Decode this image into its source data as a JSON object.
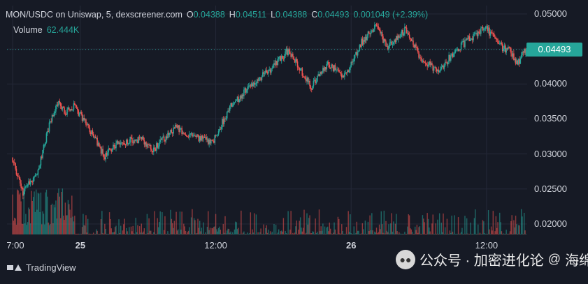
{
  "legend": {
    "symbol": "MON/USDC on Uniswap, 5, dexscreener.com",
    "open_label": "O",
    "open": "0.04388",
    "high_label": "H",
    "high": "0.04511",
    "low_label": "L",
    "low": "0.04388",
    "close_label": "C",
    "close": "0.04493",
    "change": "0.001049 (+2.39%)",
    "volume_label": "Volume",
    "volume": "62.444K"
  },
  "last_price": "0.04493",
  "footer": {
    "brand": "TradingView"
  },
  "watermark": {
    "text": "公众号 · 加密进化论",
    "handle": "海绵",
    "icon": "wechat-icon"
  },
  "colors": {
    "up": "#26a69a",
    "down": "#ef5350",
    "background": "#161a25",
    "grid": "#242838"
  },
  "chart_data": {
    "type": "candlestick",
    "y_ticks": [
      "0.05000",
      "0.04500",
      "0.04000",
      "0.03500",
      "0.03000",
      "0.02500",
      "0.02000"
    ],
    "y_tick_values": [
      0.05,
      0.045,
      0.04,
      0.035,
      0.03,
      0.025,
      0.02
    ],
    "x_ticks": [
      "7:00",
      "25",
      "12:00",
      "26",
      "12:00"
    ],
    "x_tick_hours": [
      0,
      6,
      18,
      30,
      42
    ],
    "x_range_hours": [
      -0.5,
      45.6
    ],
    "ylim": [
      0.0185,
      0.0512
    ],
    "last_price": 0.04493,
    "price_path": [
      [
        0.0,
        0.0295
      ],
      [
        1.0,
        0.0245
      ],
      [
        2.3,
        0.0272
      ],
      [
        3.3,
        0.034
      ],
      [
        4.1,
        0.0375
      ],
      [
        4.8,
        0.036
      ],
      [
        5.6,
        0.0368
      ],
      [
        7.3,
        0.0325
      ],
      [
        8.2,
        0.0297
      ],
      [
        9.3,
        0.0315
      ],
      [
        11.5,
        0.0322
      ],
      [
        12.5,
        0.0305
      ],
      [
        14.5,
        0.0338
      ],
      [
        16.5,
        0.0322
      ],
      [
        17.8,
        0.0317
      ],
      [
        19.3,
        0.0365
      ],
      [
        21.0,
        0.0395
      ],
      [
        23.0,
        0.0422
      ],
      [
        24.5,
        0.0448
      ],
      [
        26.5,
        0.0395
      ],
      [
        28.0,
        0.043
      ],
      [
        29.5,
        0.041
      ],
      [
        31.0,
        0.046
      ],
      [
        32.3,
        0.0482
      ],
      [
        33.3,
        0.0452
      ],
      [
        34.9,
        0.0478
      ],
      [
        36.3,
        0.0435
      ],
      [
        37.9,
        0.0418
      ],
      [
        39.0,
        0.0442
      ],
      [
        40.4,
        0.0462
      ],
      [
        42.0,
        0.0482
      ],
      [
        43.2,
        0.0455
      ],
      [
        44.3,
        0.0445
      ],
      [
        44.8,
        0.0428
      ],
      [
        45.5,
        0.04493
      ]
    ],
    "volume_max": 62444
  }
}
